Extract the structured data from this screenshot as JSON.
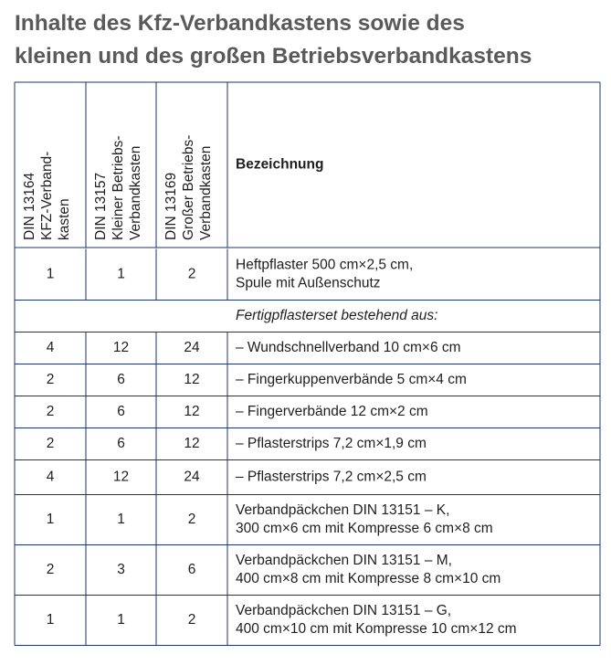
{
  "header": {
    "title": [
      "Inhalte des Kfz-Verbandkastens sowie des",
      "kleinen und des großen Betriebsverbandkastens"
    ]
  },
  "table": {
    "columns": [
      [
        "DIN 13164",
        "KFZ-Verband-",
        "kasten"
      ],
      [
        "DIN 13157",
        "Kleiner Betriebs-",
        "Verbandkasten"
      ],
      [
        "DIN 13169",
        "Großer Betriebs-",
        "Verbandkasten"
      ],
      "Bezeichnung"
    ],
    "rows": [
      [
        1,
        1,
        2,
        [
          "Heftpflaster 500 cm×2,5 cm,",
          "Spule mit Außenschutz"
        ]
      ],
      [
        "Fertigpflasterset bestehend aus:"
      ],
      [
        4,
        12,
        24,
        [
          "– Wundschnellverband 10 cm×6 cm"
        ]
      ],
      [
        2,
        6,
        12,
        [
          "– Fingerkuppenverbände 5 cm×4 cm"
        ]
      ],
      [
        2,
        6,
        12,
        [
          "– Fingerverbände 12 cm×2 cm"
        ]
      ],
      [
        2,
        6,
        12,
        [
          "– Pflasterstrips 7,2 cm×1,9 cm"
        ]
      ],
      [
        4,
        12,
        24,
        [
          "– Pflasterstrips 7,2 cm×2,5 cm"
        ]
      ],
      [
        1,
        1,
        2,
        [
          "Verbandpäckchen DIN 13151 – K,",
          "300 cm×6 cm mit Kompresse 6 cm×8 cm"
        ]
      ],
      [
        2,
        3,
        6,
        [
          "Verbandpäckchen DIN 13151 – M,",
          "400 cm×8 cm mit Kompresse 8 cm×10 cm"
        ]
      ],
      [
        1,
        1,
        2,
        [
          "Verbandpäckchen DIN 13151 – G,",
          "400 cm×10 cm mit Kompresse 10 cm×12 cm"
        ]
      ]
    ]
  }
}
